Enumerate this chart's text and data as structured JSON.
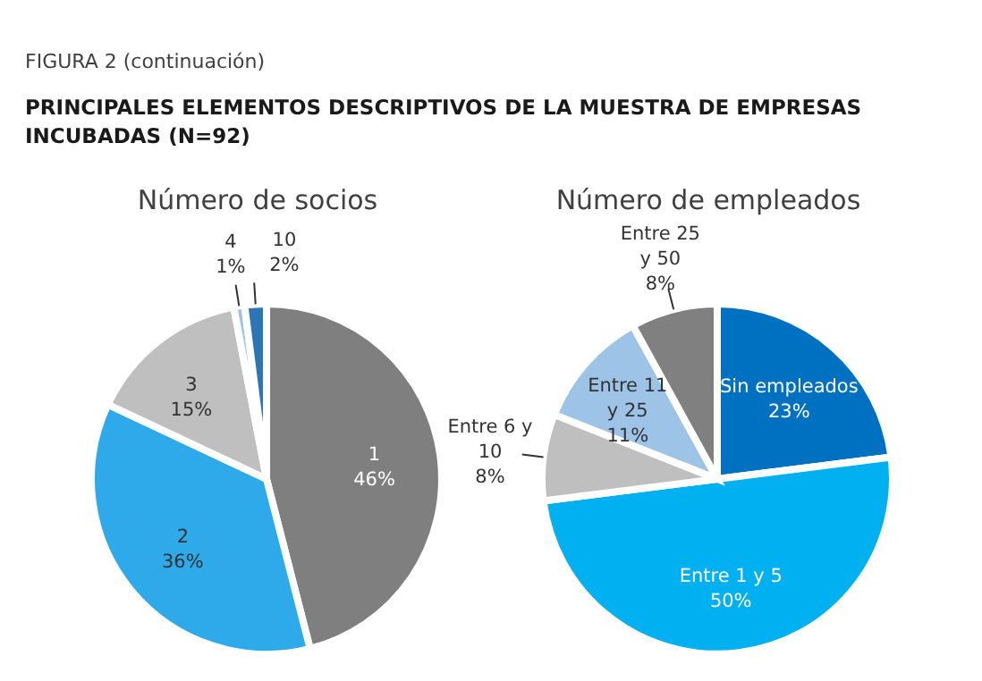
{
  "chart_data": [
    {
      "type": "pie",
      "title": "Número de socios",
      "annotations": [
        "FIGURA 2 (continuación)",
        "PRINCIPALES ELEMENTOS DESCRIPTIVOS DE LA MUESTRA DE EMPRESAS INCUBADAS (N=92)"
      ],
      "categories": [
        "1",
        "2",
        "3",
        "4",
        "10"
      ],
      "values": [
        46,
        36,
        15,
        1,
        2
      ],
      "value_labels": [
        "46%",
        "36%",
        "15%",
        "1%",
        "2%"
      ],
      "colors": [
        "#7f7f7f",
        "#2eaaeb",
        "#bfbfbf",
        "#9dc3e6",
        "#2e75b6"
      ],
      "legend": false
    },
    {
      "type": "pie",
      "title": "Número de empleados",
      "categories": [
        "Sin empleados",
        "Entre 1 y 5",
        "Entre 6 y 10",
        "Entre 11 y 25",
        "Entre 25 y 50"
      ],
      "values": [
        23,
        50,
        8,
        11,
        8
      ],
      "value_labels": [
        "23%",
        "50%",
        "8%",
        "11%",
        "8%"
      ],
      "colors": [
        "#0070c0",
        "#00b0f0",
        "#bfbfbf",
        "#9dc3e6",
        "#808080"
      ],
      "legend": false
    }
  ]
}
